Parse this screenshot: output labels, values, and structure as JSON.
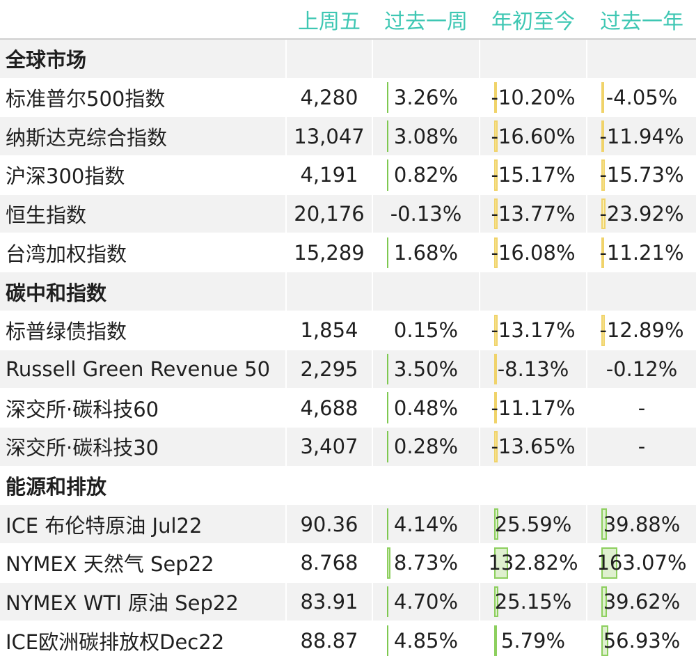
{
  "headers": [
    "上周五",
    "过去一周",
    "年初至今",
    "过去一年"
  ],
  "colors": {
    "header": "#3ec7b3",
    "positive_bar": "#7ec850",
    "negative_bar": "#f0d36a"
  },
  "rows": [
    {
      "type": "section",
      "label": "全球市场"
    },
    {
      "type": "data",
      "name": "标准普尔500指数",
      "price": "4,280",
      "week": "3.26%",
      "ytd": "-10.20%",
      "year": "-4.05%",
      "week_v": 3.26,
      "ytd_v": -10.2,
      "year_v": -4.05
    },
    {
      "type": "data",
      "name": "纳斯达克综合指数",
      "price": "13,047",
      "week": "3.08%",
      "ytd": "-16.60%",
      "year": "-11.94%",
      "week_v": 3.08,
      "ytd_v": -16.6,
      "year_v": -11.94
    },
    {
      "type": "data",
      "name": "沪深300指数",
      "price": "4,191",
      "week": "0.82%",
      "ytd": "-15.17%",
      "year": "-15.73%",
      "week_v": 0.82,
      "ytd_v": -15.17,
      "year_v": -15.73
    },
    {
      "type": "data",
      "name": "恒生指数",
      "price": "20,176",
      "week": "-0.13%",
      "ytd": "-13.77%",
      "year": "-23.92%",
      "week_v": -0.13,
      "ytd_v": -13.77,
      "year_v": -23.92
    },
    {
      "type": "data",
      "name": "台湾加权指数",
      "price": "15,289",
      "week": "1.68%",
      "ytd": "-16.08%",
      "year": "-11.21%",
      "week_v": 1.68,
      "ytd_v": -16.08,
      "year_v": -11.21
    },
    {
      "type": "section",
      "label": "碳中和指数"
    },
    {
      "type": "data",
      "name": "标普绿债指数",
      "price": "1,854",
      "week": "0.15%",
      "ytd": "-13.17%",
      "year": "-12.89%",
      "week_v": 0.15,
      "ytd_v": -13.17,
      "year_v": -12.89
    },
    {
      "type": "data",
      "name": "Russell Green Revenue 50",
      "price": "2,295",
      "week": "3.50%",
      "ytd": "-8.13%",
      "year": "-0.12%",
      "week_v": 3.5,
      "ytd_v": -8.13,
      "year_v": -0.12
    },
    {
      "type": "data",
      "name": "深交所·碳科技60",
      "price": "4,688",
      "week": "0.48%",
      "ytd": "-11.17%",
      "year": "-",
      "week_v": 0.48,
      "ytd_v": -11.17,
      "year_v": null
    },
    {
      "type": "data",
      "name": "深交所·碳科技30",
      "price": "3,407",
      "week": "0.28%",
      "ytd": "-13.65%",
      "year": "-",
      "week_v": 0.28,
      "ytd_v": -13.65,
      "year_v": null
    },
    {
      "type": "section",
      "label": "能源和排放"
    },
    {
      "type": "data",
      "name": "ICE 布伦特原油 Jul22",
      "price": "90.36",
      "week": "4.14%",
      "ytd": "25.59%",
      "year": "39.88%",
      "week_v": 4.14,
      "ytd_v": 25.59,
      "year_v": 39.88
    },
    {
      "type": "data",
      "name": "NYMEX 天然气 Sep22",
      "price": "8.768",
      "week": "8.73%",
      "ytd": "132.82%",
      "year": "163.07%",
      "week_v": 8.73,
      "ytd_v": 132.82,
      "year_v": 163.07
    },
    {
      "type": "data",
      "name": "NYMEX WTI 原油 Sep22",
      "price": "83.91",
      "week": "4.70%",
      "ytd": "25.15%",
      "year": "39.62%",
      "week_v": 4.7,
      "ytd_v": 25.15,
      "year_v": 39.62
    },
    {
      "type": "data",
      "name": "ICE欧洲碳排放权Dec22",
      "price": "88.87",
      "week": "4.85%",
      "ytd": "5.79%",
      "year": "56.93%",
      "week_v": 4.85,
      "ytd_v": 5.79,
      "year_v": 56.93
    }
  ]
}
